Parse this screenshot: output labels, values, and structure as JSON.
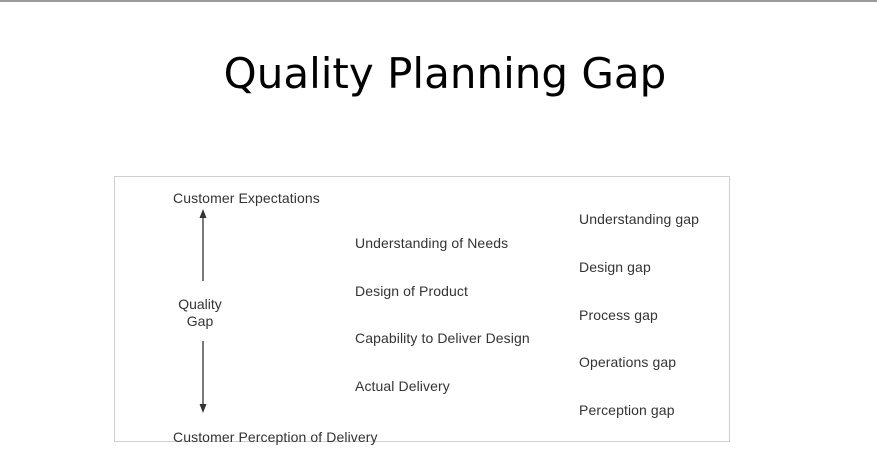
{
  "slide": {
    "title": "Quality Planning Gap"
  },
  "diagram": {
    "top_label": "Customer Expectations",
    "bottom_label": "Customer Perception of Delivery",
    "axis_label_line1": "Quality",
    "axis_label_line2": "Gap",
    "stages": [
      "Understanding of Needs",
      "Design of Product",
      "Capability to Deliver Design",
      "Actual Delivery"
    ],
    "gaps": [
      "Understanding gap",
      "Design gap",
      "Process gap",
      "Operations gap",
      "Perception gap"
    ]
  },
  "colors": {
    "text": "#333333",
    "border": "#cfcfcf",
    "top_rule": "#9a9a9a"
  }
}
